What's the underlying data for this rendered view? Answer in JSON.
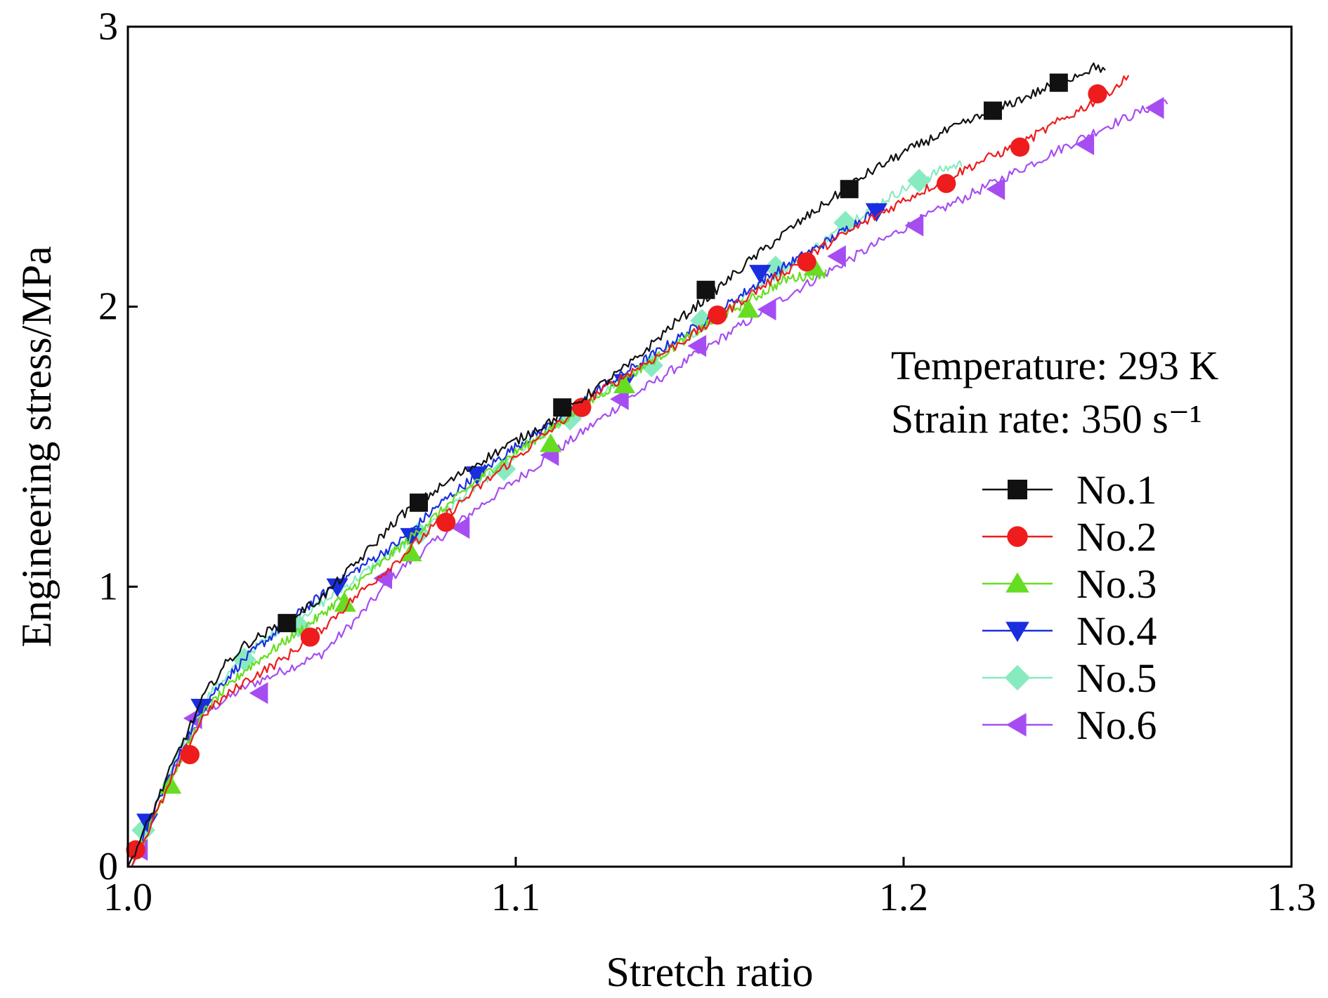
{
  "chart_data": {
    "type": "line",
    "title": "",
    "xlabel": "Stretch ratio",
    "ylabel": "Engineering stress/MPa",
    "xlim": [
      1.0,
      1.3
    ],
    "ylim": [
      0,
      3
    ],
    "xticks": [
      1.0,
      1.1,
      1.2,
      1.3
    ],
    "xtick_labels": [
      "1.0",
      "1.1",
      "1.2",
      "1.3"
    ],
    "yticks": [
      0,
      1,
      2,
      3
    ],
    "ytick_labels": [
      "0",
      "1",
      "2",
      "3"
    ],
    "grid": false,
    "legend_position": "right",
    "annotations": {
      "temperature": "Temperature: 293 K",
      "strain_rate": "Strain rate: 350 s⁻¹"
    },
    "series": [
      {
        "name": "No.1",
        "color": "#111111",
        "marker": "square",
        "x": [
          1.0,
          1.004,
          1.008,
          1.012,
          1.016,
          1.02,
          1.025,
          1.03,
          1.04,
          1.05,
          1.06,
          1.07,
          1.08,
          1.09,
          1.1,
          1.11,
          1.12,
          1.13,
          1.14,
          1.15,
          1.16,
          1.17,
          1.18,
          1.19,
          1.2,
          1.21,
          1.22,
          1.23,
          1.24,
          1.25,
          1.252
        ],
        "y": [
          0.0,
          0.12,
          0.25,
          0.38,
          0.5,
          0.62,
          0.72,
          0.79,
          0.87,
          0.96,
          1.1,
          1.25,
          1.35,
          1.44,
          1.52,
          1.6,
          1.7,
          1.8,
          1.93,
          2.04,
          2.16,
          2.27,
          2.37,
          2.47,
          2.55,
          2.62,
          2.68,
          2.74,
          2.8,
          2.86,
          2.84
        ],
        "marker_x": [
          1.041,
          1.075,
          1.112,
          1.149,
          1.186,
          1.223,
          1.24
        ],
        "marker_y": [
          0.87,
          1.3,
          1.64,
          2.06,
          2.42,
          2.7,
          2.8
        ]
      },
      {
        "name": "No.2",
        "color": "#ee1c1c",
        "marker": "circle",
        "x": [
          1.001,
          1.005,
          1.01,
          1.015,
          1.02,
          1.03,
          1.04,
          1.05,
          1.06,
          1.07,
          1.08,
          1.09,
          1.1,
          1.11,
          1.12,
          1.13,
          1.14,
          1.15,
          1.16,
          1.17,
          1.18,
          1.19,
          1.2,
          1.21,
          1.22,
          1.23,
          1.24,
          1.25,
          1.258
        ],
        "y": [
          0.0,
          0.12,
          0.27,
          0.42,
          0.55,
          0.66,
          0.74,
          0.85,
          0.98,
          1.1,
          1.23,
          1.35,
          1.46,
          1.57,
          1.68,
          1.77,
          1.85,
          1.94,
          2.04,
          2.13,
          2.22,
          2.3,
          2.38,
          2.45,
          2.52,
          2.58,
          2.66,
          2.74,
          2.82
        ],
        "marker_x": [
          1.002,
          1.016,
          1.047,
          1.082,
          1.117,
          1.152,
          1.175,
          1.211,
          1.23,
          1.25
        ],
        "marker_y": [
          0.06,
          0.4,
          0.82,
          1.23,
          1.64,
          1.97,
          2.16,
          2.44,
          2.57,
          2.76
        ]
      },
      {
        "name": "No.3",
        "color": "#66dd22",
        "marker": "triangle-up",
        "x": [
          1.001,
          1.005,
          1.01,
          1.015,
          1.02,
          1.03,
          1.04,
          1.05,
          1.06,
          1.07,
          1.08,
          1.09,
          1.1,
          1.11,
          1.12,
          1.13,
          1.14,
          1.15,
          1.16,
          1.17,
          1.18
        ],
        "y": [
          0.0,
          0.12,
          0.28,
          0.42,
          0.56,
          0.7,
          0.8,
          0.9,
          1.02,
          1.14,
          1.26,
          1.38,
          1.48,
          1.57,
          1.67,
          1.76,
          1.85,
          1.94,
          2.02,
          2.1,
          2.12
        ],
        "marker_x": [
          1.011,
          1.056,
          1.073,
          1.109,
          1.128,
          1.16,
          1.177
        ],
        "marker_y": [
          0.29,
          0.94,
          1.12,
          1.51,
          1.72,
          1.99,
          2.14
        ]
      },
      {
        "name": "No.4",
        "color": "#1a2ee0",
        "marker": "triangle-down",
        "x": [
          1.001,
          1.005,
          1.01,
          1.015,
          1.02,
          1.03,
          1.04,
          1.05,
          1.06,
          1.07,
          1.08,
          1.09,
          1.1,
          1.11,
          1.12,
          1.13,
          1.14,
          1.15,
          1.16,
          1.17,
          1.18,
          1.19,
          1.195
        ],
        "y": [
          0.0,
          0.14,
          0.3,
          0.45,
          0.59,
          0.74,
          0.86,
          0.97,
          1.07,
          1.16,
          1.29,
          1.4,
          1.5,
          1.59,
          1.69,
          1.78,
          1.87,
          1.96,
          2.06,
          2.15,
          2.23,
          2.32,
          2.36
        ],
        "marker_x": [
          1.005,
          1.019,
          1.054,
          1.073,
          1.09,
          1.128,
          1.163,
          1.193
        ],
        "marker_y": [
          0.16,
          0.57,
          1.0,
          1.18,
          1.4,
          1.73,
          2.12,
          2.34
        ]
      },
      {
        "name": "No.5",
        "color": "#88ebc0",
        "marker": "diamond",
        "x": [
          1.001,
          1.005,
          1.01,
          1.015,
          1.02,
          1.03,
          1.04,
          1.05,
          1.06,
          1.07,
          1.08,
          1.09,
          1.1,
          1.11,
          1.12,
          1.13,
          1.14,
          1.15,
          1.16,
          1.17,
          1.18,
          1.19,
          1.2,
          1.21,
          1.215
        ],
        "y": [
          0.0,
          0.15,
          0.31,
          0.46,
          0.6,
          0.75,
          0.86,
          0.94,
          1.04,
          1.14,
          1.25,
          1.36,
          1.47,
          1.57,
          1.67,
          1.76,
          1.85,
          1.95,
          2.05,
          2.14,
          2.24,
          2.34,
          2.42,
          2.49,
          2.51
        ],
        "marker_x": [
          1.004,
          1.03,
          1.044,
          1.075,
          1.097,
          1.114,
          1.135,
          1.148,
          1.167,
          1.185,
          1.204
        ],
        "marker_y": [
          0.13,
          0.74,
          0.86,
          1.19,
          1.42,
          1.6,
          1.79,
          1.95,
          2.14,
          2.3,
          2.45
        ]
      },
      {
        "name": "No.6",
        "color": "#a64df2",
        "marker": "triangle-left",
        "x": [
          1.001,
          1.005,
          1.01,
          1.015,
          1.02,
          1.03,
          1.04,
          1.05,
          1.06,
          1.07,
          1.08,
          1.09,
          1.1,
          1.11,
          1.12,
          1.13,
          1.14,
          1.15,
          1.16,
          1.17,
          1.18,
          1.19,
          1.2,
          1.21,
          1.22,
          1.23,
          1.24,
          1.25,
          1.26,
          1.268
        ],
        "y": [
          0.0,
          0.15,
          0.3,
          0.45,
          0.55,
          0.64,
          0.7,
          0.76,
          0.9,
          1.06,
          1.17,
          1.28,
          1.38,
          1.48,
          1.58,
          1.68,
          1.77,
          1.86,
          1.95,
          2.04,
          2.12,
          2.2,
          2.28,
          2.35,
          2.42,
          2.49,
          2.56,
          2.63,
          2.69,
          2.74
        ],
        "marker_x": [
          1.003,
          1.017,
          1.034,
          1.066,
          1.086,
          1.109,
          1.127,
          1.147,
          1.165,
          1.183,
          1.203,
          1.224,
          1.247,
          1.265
        ],
        "marker_y": [
          0.06,
          0.53,
          0.62,
          1.03,
          1.21,
          1.47,
          1.67,
          1.86,
          1.99,
          2.18,
          2.29,
          2.42,
          2.58,
          2.71
        ]
      }
    ]
  }
}
